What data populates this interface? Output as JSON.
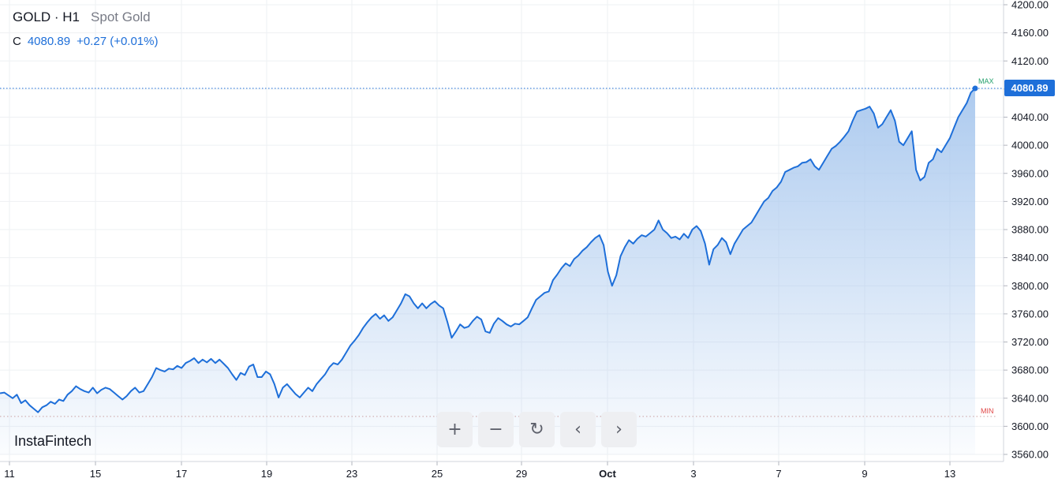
{
  "header": {
    "symbol": "GOLD · H1",
    "name": "Spot Gold",
    "close_prefix": "C",
    "close_value": "4080.89",
    "change": "+0.27 (+0.01%)"
  },
  "brand": "InstaFintech",
  "toolbar": [
    {
      "name": "zoom-in-button",
      "icon": "plus-icon",
      "glyph": "+"
    },
    {
      "name": "zoom-out-button",
      "icon": "minus-icon",
      "glyph": "−"
    },
    {
      "name": "reset-button",
      "icon": "reset-icon",
      "glyph": "↻"
    },
    {
      "name": "scroll-left-button",
      "icon": "chevron-left-icon",
      "glyph": "‹"
    },
    {
      "name": "scroll-right-button",
      "icon": "chevron-right-icon",
      "glyph": "›"
    }
  ],
  "colors": {
    "line": "#1e6fd9",
    "fill_top": "#a9c8ee",
    "max": "#22a06b",
    "min": "#e04545",
    "grid": "#eef0f3",
    "axis_text": "#131722"
  },
  "chart_data": {
    "type": "area",
    "title": "GOLD · H1",
    "subtitle": "Spot Gold",
    "ylim": [
      3560,
      4200
    ],
    "y_ticks": [
      "4200.00",
      "4160.00",
      "4120.00",
      "4080.00",
      "4040.00",
      "4000.00",
      "3960.00",
      "3920.00",
      "3880.00",
      "3840.00",
      "3800.00",
      "3760.00",
      "3720.00",
      "3680.00",
      "3640.00",
      "3600.00",
      "3560.00"
    ],
    "x_ticks": [
      "11",
      "15",
      "17",
      "19",
      "23",
      "25",
      "29",
      "Oct",
      "3",
      "7",
      "9",
      "13"
    ],
    "last_price_label": "4080.89",
    "max_label": "MAX",
    "min_label": "MIN",
    "max_value": 4081,
    "min_value": 3614,
    "series": [
      {
        "values": [
          3647,
          3648,
          3644,
          3640,
          3645,
          3633,
          3637,
          3630,
          3625,
          3620,
          3627,
          3630,
          3635,
          3632,
          3638,
          3636,
          3645,
          3650,
          3657,
          3653,
          3650,
          3648,
          3655,
          3647,
          3652,
          3655,
          3653,
          3648,
          3643,
          3638,
          3643,
          3650,
          3655,
          3648,
          3650,
          3660,
          3670,
          3683,
          3680,
          3678,
          3682,
          3681,
          3686,
          3683,
          3690,
          3693,
          3697,
          3690,
          3695,
          3691,
          3696,
          3690,
          3695,
          3689,
          3683,
          3674,
          3666,
          3676,
          3673,
          3685,
          3688,
          3670,
          3670,
          3678,
          3674,
          3660,
          3641,
          3655,
          3660,
          3653,
          3646,
          3641,
          3648,
          3655,
          3650,
          3660,
          3667,
          3674,
          3684,
          3690,
          3688,
          3695,
          3705,
          3715,
          3722,
          3730,
          3740,
          3748,
          3755,
          3760,
          3753,
          3758,
          3750,
          3755,
          3765,
          3775,
          3788,
          3785,
          3775,
          3768,
          3775,
          3768,
          3774,
          3778,
          3772,
          3768,
          3748,
          3726,
          3735,
          3745,
          3740,
          3742,
          3750,
          3756,
          3752,
          3735,
          3733,
          3746,
          3754,
          3750,
          3745,
          3742,
          3746,
          3745,
          3750,
          3755,
          3768,
          3780,
          3785,
          3790,
          3792,
          3808,
          3816,
          3825,
          3832,
          3828,
          3838,
          3843,
          3850,
          3855,
          3862,
          3868,
          3872,
          3858,
          3820,
          3800,
          3815,
          3842,
          3855,
          3865,
          3860,
          3867,
          3872,
          3870,
          3875,
          3880,
          3893,
          3880,
          3875,
          3868,
          3870,
          3866,
          3874,
          3868,
          3880,
          3885,
          3878,
          3860,
          3830,
          3852,
          3858,
          3868,
          3862,
          3845,
          3860,
          3870,
          3880,
          3885,
          3890,
          3900,
          3910,
          3920,
          3925,
          3935,
          3940,
          3948,
          3962,
          3965,
          3968,
          3970,
          3975,
          3976,
          3980,
          3970,
          3965,
          3975,
          3985,
          3995,
          3999,
          4005,
          4012,
          4020,
          4035,
          4048,
          4050,
          4052,
          4055,
          4045,
          4025,
          4030,
          4040,
          4050,
          4035,
          4005,
          4000,
          4010,
          4020,
          3965,
          3950,
          3955,
          3975,
          3980,
          3995,
          3990,
          4000,
          4010,
          4025,
          4040,
          4050,
          4060,
          4075,
          4081
        ]
      }
    ]
  }
}
